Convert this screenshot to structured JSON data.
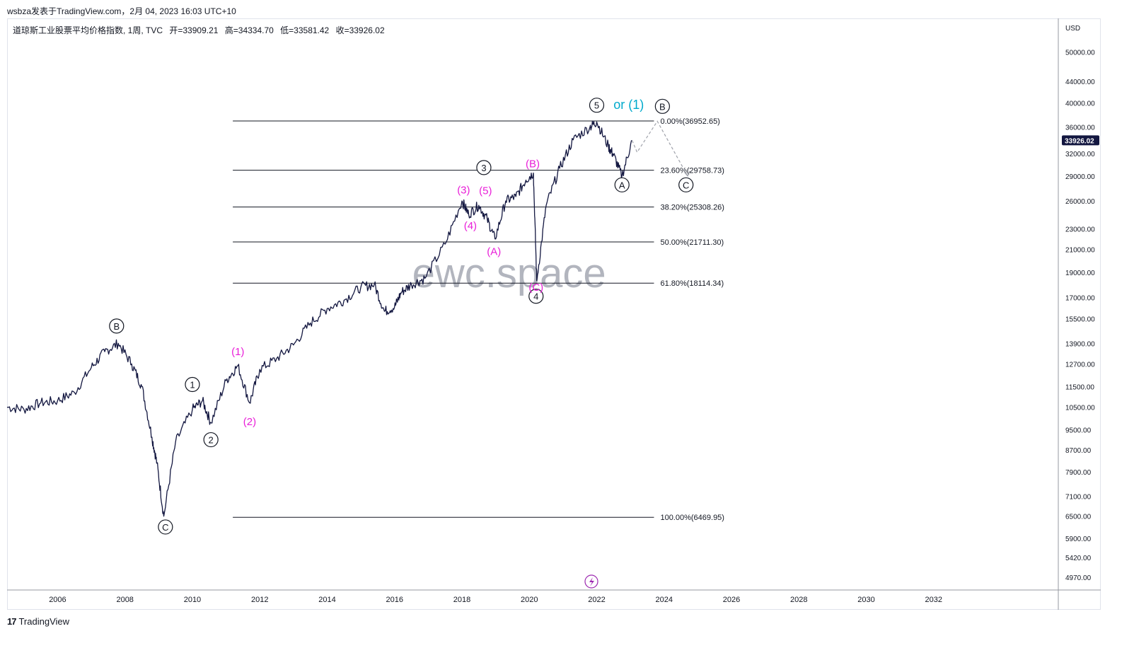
{
  "header": {
    "publish_line": "wsbza发表于TradingView.com，2月 04, 2023 16:03 UTC+10"
  },
  "legend": {
    "symbol": "道琼斯工业股票平均价格指数, 1周, TVC",
    "open": "开=33909.21",
    "high": "高=34334.70",
    "low": "低=33581.42",
    "close": "收=33926.02"
  },
  "footer": {
    "logo_mark": "17",
    "brand": "TradingView"
  },
  "watermark": "ewc.space",
  "colors": {
    "price": "#131740",
    "wave_black": "#131722",
    "wave_magenta": "#e91ed8",
    "alt_label": "#00aacc",
    "projection": "#a0a3ab",
    "fib_line": "#131722"
  },
  "chart_data": {
    "type": "line",
    "title": "",
    "y_scale": "log",
    "currency_label": "USD",
    "ylim": [
      4700,
      58000
    ],
    "xlim": [
      2004.5,
      2035.7
    ],
    "x_ticks": [
      "2006",
      "2008",
      "2010",
      "2012",
      "2014",
      "2016",
      "2018",
      "2020",
      "2022",
      "2024",
      "2026",
      "2028",
      "2030",
      "2032"
    ],
    "y_ticks": [
      "50000.00",
      "44000.00",
      "40000.00",
      "36000.00",
      "32000.00",
      "29000.00",
      "26000.00",
      "23000.00",
      "21000.00",
      "19000.00",
      "17000.00",
      "15500.00",
      "13900.00",
      "12700.00",
      "11500.00",
      "10500.00",
      "9500.00",
      "8700.00",
      "7900.00",
      "7100.00",
      "6500.00",
      "5900.00",
      "5420.00",
      "4970.00"
    ],
    "last_price": "33926.02",
    "series": [
      {
        "x": [
          2004.5,
          2005.0,
          2005.5,
          2006.0,
          2006.5,
          2007.0,
          2007.4,
          2007.8,
          2008.2,
          2008.5,
          2008.8,
          2008.95,
          2009.15,
          2009.5,
          2010.0,
          2010.3,
          2010.55,
          2011.0,
          2011.35,
          2011.7,
          2012.0,
          2012.5,
          2013.0,
          2013.5,
          2014.0,
          2014.5,
          2015.0,
          2015.4,
          2015.7,
          2016.0,
          2016.2,
          2016.5,
          2016.9,
          2017.5,
          2018.0,
          2018.2,
          2018.5,
          2018.75,
          2018.98,
          2019.3,
          2019.6,
          2019.9,
          2020.12,
          2020.22,
          2020.5,
          2020.9,
          2021.3,
          2021.8,
          2022.0,
          2022.35,
          2022.5,
          2022.75,
          2023.05
        ],
        "y": [
          10500,
          10400,
          10700,
          10800,
          11200,
          12500,
          13400,
          13900,
          12700,
          11500,
          9200,
          8200,
          6500,
          9000,
          10400,
          10800,
          9800,
          11800,
          12600,
          10700,
          12400,
          13000,
          13800,
          15200,
          16200,
          16800,
          17800,
          18000,
          16000,
          16300,
          17400,
          18000,
          18500,
          21500,
          26000,
          24500,
          25500,
          24000,
          22000,
          26000,
          26500,
          28500,
          29400,
          18300,
          25500,
          30000,
          34000,
          36000,
          36800,
          33000,
          31800,
          29000,
          33926
        ]
      }
    ],
    "fib_levels": [
      {
        "label": "0.00%(36952.65)",
        "value": 36952.65
      },
      {
        "label": "23.60%(29758.73)",
        "value": 29758.73
      },
      {
        "label": "38.20%(25308.26)",
        "value": 25308.26
      },
      {
        "label": "50.00%(21711.30)",
        "value": 21711.3
      },
      {
        "label": "61.80%(18114.34)",
        "value": 18114.34
      },
      {
        "label": "100.00%(6469.95)",
        "value": 6469.95
      }
    ],
    "projection": {
      "x": [
        2023.05,
        2023.2,
        2023.8,
        2024.7
      ],
      "y": [
        33926,
        32200,
        36900,
        29000
      ]
    },
    "annotations": [
      {
        "text": "B",
        "x": 2007.75,
        "y": 15000,
        "style": "circle"
      },
      {
        "text": "C",
        "x": 2009.2,
        "y": 6200,
        "style": "circle"
      },
      {
        "text": "1",
        "x": 2010.0,
        "y": 11600,
        "style": "circle"
      },
      {
        "text": "2",
        "x": 2010.55,
        "y": 9100,
        "style": "circle"
      },
      {
        "text": "3",
        "x": 2018.65,
        "y": 30100,
        "style": "circle"
      },
      {
        "text": "4",
        "x": 2020.2,
        "y": 17100,
        "style": "circle"
      },
      {
        "text": "5",
        "x": 2022.0,
        "y": 39600,
        "style": "circle"
      },
      {
        "text": "A",
        "x": 2022.75,
        "y": 27900,
        "style": "circle"
      },
      {
        "text": "B",
        "x": 2023.95,
        "y": 39400,
        "style": "circle"
      },
      {
        "text": "C",
        "x": 2024.65,
        "y": 27900,
        "style": "circle"
      },
      {
        "text": "(1)",
        "x": 2011.35,
        "y": 13400,
        "style": "magenta"
      },
      {
        "text": "(2)",
        "x": 2011.7,
        "y": 9850,
        "style": "magenta"
      },
      {
        "text": "(3)",
        "x": 2018.05,
        "y": 27300,
        "style": "magenta"
      },
      {
        "text": "(4)",
        "x": 2018.25,
        "y": 23300,
        "style": "magenta"
      },
      {
        "text": "(5)",
        "x": 2018.7,
        "y": 27200,
        "style": "magenta"
      },
      {
        "text": "(A)",
        "x": 2018.95,
        "y": 20800,
        "style": "magenta"
      },
      {
        "text": "(B)",
        "x": 2020.1,
        "y": 30600,
        "style": "magenta"
      },
      {
        "text": "(C)",
        "x": 2020.2,
        "y": 17800,
        "style": "magenta"
      },
      {
        "text": "or (1)",
        "x": 2022.95,
        "y": 39700,
        "style": "alt"
      }
    ]
  }
}
